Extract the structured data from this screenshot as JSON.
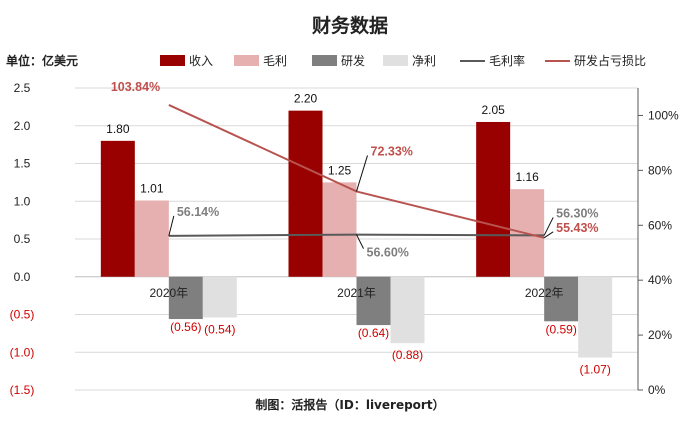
{
  "title": "财务数据",
  "unit_label": "单位：亿美元",
  "footer": "制图：活报告（ID：livereport）",
  "legend": [
    {
      "name": "收入",
      "kind": "bar",
      "color": "#990000"
    },
    {
      "name": "毛利",
      "kind": "bar",
      "color": "#e6b0b0"
    },
    {
      "name": "研发",
      "kind": "bar",
      "color": "#7f7f7f"
    },
    {
      "name": "净利",
      "kind": "bar",
      "color": "#e0e0e0"
    },
    {
      "name": "毛利率",
      "kind": "line",
      "color": "#595959"
    },
    {
      "name": "研发占亏损比",
      "kind": "line",
      "color": "#b85450"
    }
  ],
  "chart_data": {
    "type": "bar",
    "categories": [
      "2020年",
      "2021年",
      "2022年"
    ],
    "ylim": [
      -1.5,
      2.5
    ],
    "yticks": [
      "2.5",
      "2.0",
      "1.5",
      "1.0",
      "0.5",
      "0.0",
      "(0.5)",
      "(1.0)",
      "(1.5)"
    ],
    "y2lim": [
      0,
      110
    ],
    "y2ticks": [
      "100%",
      "80%",
      "60%",
      "40%",
      "20%",
      "0%"
    ],
    "grid": true,
    "legend_position": "top",
    "series": [
      {
        "name": "收入",
        "kind": "bar",
        "values": [
          1.8,
          2.2,
          2.05
        ],
        "labels": [
          "1.80",
          "2.20",
          "2.05"
        ]
      },
      {
        "name": "毛利",
        "kind": "bar",
        "values": [
          1.01,
          1.25,
          1.16
        ],
        "labels": [
          "1.01",
          "1.25",
          "1.16"
        ]
      },
      {
        "name": "研发",
        "kind": "bar",
        "values": [
          -0.56,
          -0.64,
          -0.59
        ],
        "labels": [
          "(0.56)",
          "(0.64)",
          "(0.59)"
        ]
      },
      {
        "name": "净利",
        "kind": "bar",
        "values": [
          -0.54,
          -0.88,
          -1.07
        ],
        "labels": [
          "(0.54)",
          "(0.88)",
          "(1.07)"
        ]
      },
      {
        "name": "毛利率",
        "kind": "line",
        "axis": "right",
        "values": [
          56.14,
          56.6,
          56.3
        ],
        "labels": [
          "56.14%",
          "56.60%",
          "56.30%"
        ]
      },
      {
        "name": "研发占亏损比",
        "kind": "line",
        "axis": "right",
        "values": [
          103.84,
          72.33,
          55.43
        ],
        "labels": [
          "103.84%",
          "72.33%",
          "55.43%"
        ]
      }
    ]
  }
}
